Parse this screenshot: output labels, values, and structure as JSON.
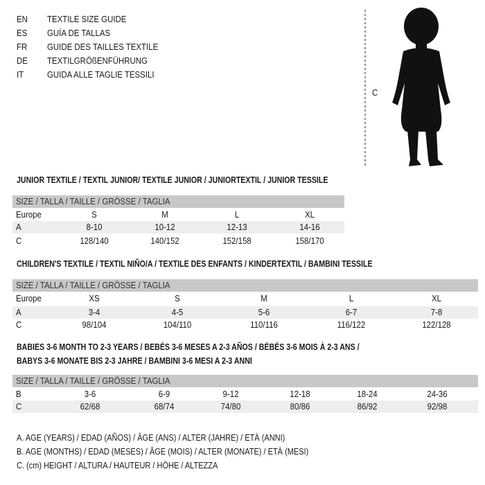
{
  "languages": [
    {
      "code": "EN",
      "text": "TEXTILE SIZE GUIDE"
    },
    {
      "code": "ES",
      "text": "GUÍA DE TALLAS"
    },
    {
      "code": "FR",
      "text": "GUIDE DES TAILLES TEXTILE"
    },
    {
      "code": "DE",
      "text": "TEXTILGRÖßENFÜHRUNG"
    },
    {
      "code": "IT",
      "text": "GUIDA ALLE TAGLIE TESSILI"
    }
  ],
  "figure": {
    "icon": "child-silhouette-icon",
    "measure_label": "C"
  },
  "size_header": "SIZE / TALLA / TAILLE / GRÖSSE / TAGLIA",
  "tables": [
    {
      "title": "JUNIOR TEXTILE / TEXTIL JUNIOR/ TEXTILE JUNIOR / JUNIORTEXTIL / JUNIOR TESSILE",
      "rows": [
        {
          "label": "Europe",
          "values": [
            "S",
            "M",
            "L",
            "XL"
          ]
        },
        {
          "label": "A",
          "values": [
            "8-10",
            "10-12",
            "12-13",
            "14-16"
          ]
        },
        {
          "label": "C",
          "values": [
            "128/140",
            "140/152",
            "152/158",
            "158/170"
          ]
        }
      ]
    },
    {
      "title": "CHILDREN'S TEXTILE / TEXTIL NIÑO/A / TEXTILE DES ENFANTS / KINDERTEXTIL / BAMBINI TESSILE",
      "rows": [
        {
          "label": "Europe",
          "values": [
            "XS",
            "S",
            "M",
            "L",
            "XL"
          ]
        },
        {
          "label": "A",
          "values": [
            "3-4",
            "4-5",
            "5-6",
            "6-7",
            "7-8"
          ]
        },
        {
          "label": "C",
          "values": [
            "98/104",
            "104/110",
            "110/116",
            "116/122",
            "122/128"
          ]
        }
      ]
    },
    {
      "title": "BABIES 3-6 MONTH TO 2-3 YEARS / BEBÉS 3-6 MESES A 2-3 AÑOS / BÉBÉS 3-6 MOIS À 2-3 ANS /",
      "title2": "BABYS 3-6 MONATE BIS 2-3 JAHRE / BAMBINI 3-6 MESI A 2-3 ANNI",
      "rows": [
        {
          "label": "B",
          "values": [
            "3-6",
            "6-9",
            "9-12",
            "12-18",
            "18-24",
            "24-36"
          ]
        },
        {
          "label": "C",
          "values": [
            "62/68",
            "68/74",
            "74/80",
            "80/86",
            "86/92",
            "92/98"
          ]
        }
      ]
    }
  ],
  "legend": [
    "A. AGE (YEARS) / EDAD (AÑOS) / ÂGE (ANS) / ALTER (JAHRE) / ETÀ (ANNI)",
    "B. AGE (MONTHS) / EDAD (MESES) / ÂGE (MOIS) / ALTER (MONATE) / ETÀ (MESI)",
    "C. (cm) HEIGHT / ALTURA / HAUTEUR / HÖHE / ALTEZZA"
  ]
}
